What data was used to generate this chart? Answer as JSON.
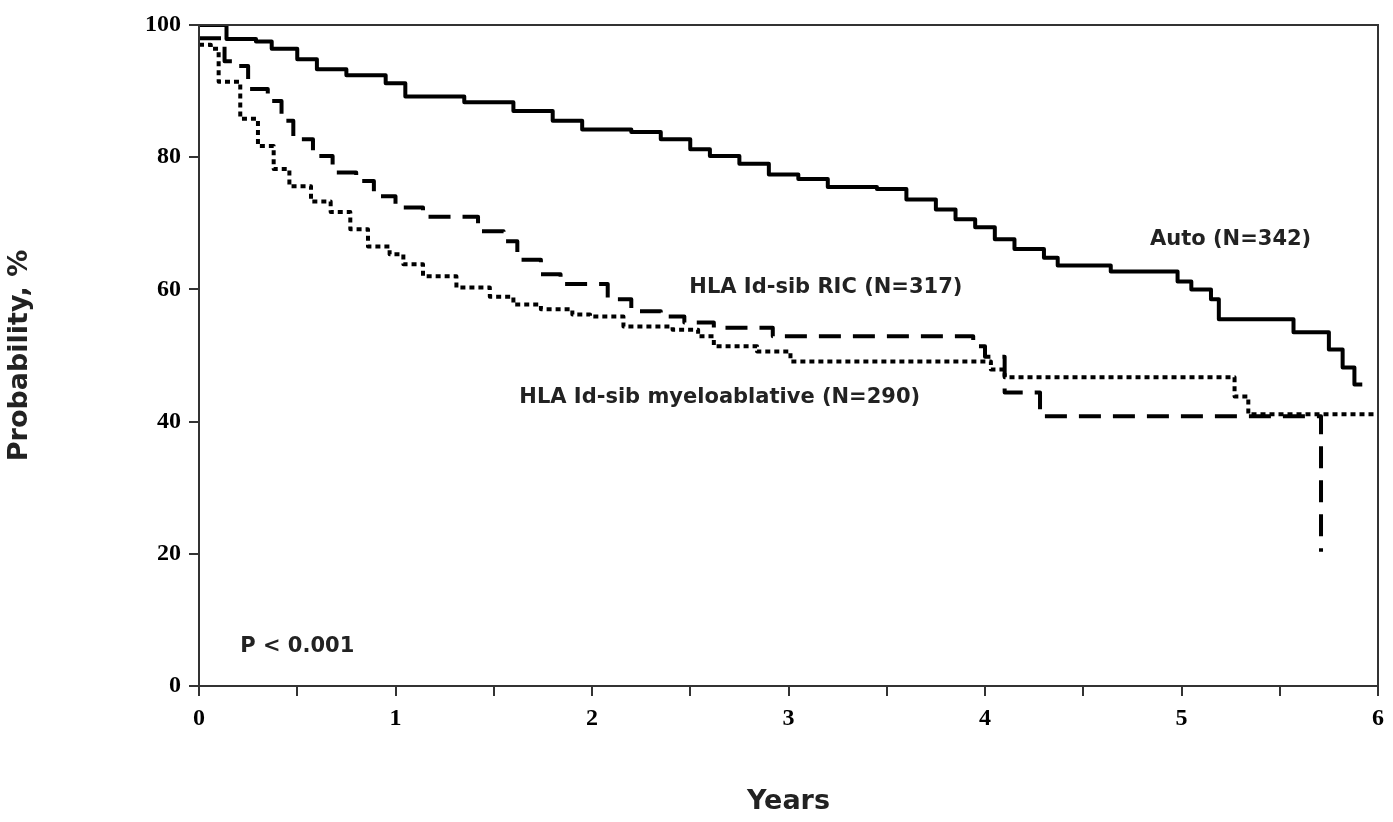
{
  "chart_data": {
    "type": "step",
    "xlabel": "Years",
    "ylabel": "Probability, %",
    "xlim": [
      0,
      6
    ],
    "xticks": [
      0,
      {
        "value": 0.5,
        "label": null
      },
      1,
      {
        "value": 1.5,
        "label": null
      },
      2,
      {
        "value": 2.5,
        "label": null
      },
      3,
      {
        "value": 3.5,
        "label": null
      },
      4,
      {
        "value": 4.5,
        "label": null
      },
      5,
      {
        "value": 5.5,
        "label": null
      },
      6
    ],
    "ylim": [
      0,
      100
    ],
    "yticks": [
      0,
      20,
      40,
      60,
      80,
      100
    ],
    "grid": false,
    "legend": false,
    "marker": "none",
    "annotations": [
      "P < 0.001"
    ],
    "series": [
      {
        "name": "Auto (N=342)",
        "color": "#000000",
        "line_style": "solid",
        "x": [
          0,
          0.14,
          0.29,
          0.37,
          0.5,
          0.6,
          0.75,
          0.95,
          1.05,
          1.35,
          1.6,
          1.8,
          1.95,
          2.2,
          2.35,
          2.5,
          2.6,
          2.75,
          2.9,
          3.05,
          3.2,
          3.45,
          3.6,
          3.75,
          3.85,
          3.95,
          4.05,
          4.15,
          4.3,
          4.37,
          4.64,
          4.98,
          5.05,
          5.15,
          5.19,
          5.57,
          5.75,
          5.82,
          5.88,
          5.92
        ],
        "values": [
          100,
          97.9,
          97.5,
          96.4,
          94.8,
          93.3,
          92.4,
          91.2,
          89.2,
          88.3,
          87,
          85.5,
          84.2,
          83.8,
          82.7,
          81.2,
          80.2,
          79,
          77.4,
          76.7,
          75.5,
          75.2,
          73.6,
          72.1,
          70.6,
          69.4,
          67.6,
          66.1,
          64.8,
          63.6,
          62.7,
          61.2,
          60,
          58.5,
          55.5,
          53.5,
          50.9,
          48.2,
          45.6,
          45.6
        ]
      },
      {
        "name": "HLA Id-sib RIC (N=317)",
        "color": "#000000",
        "line_style": "dashed",
        "x": [
          0,
          0.13,
          0.17,
          0.25,
          0.35,
          0.42,
          0.48,
          0.58,
          0.68,
          0.8,
          0.89,
          1.0,
          1.14,
          1.42,
          1.55,
          1.62,
          1.74,
          1.84,
          2.08,
          2.2,
          2.35,
          2.47,
          2.62,
          2.92,
          3.94,
          4.0,
          4.1,
          4.28,
          5.71,
          5.71
        ],
        "values": [
          98,
          94.5,
          93.8,
          90.3,
          88.5,
          85.5,
          82.7,
          80.2,
          77.7,
          76.4,
          74.1,
          72.4,
          71,
          68.8,
          67.3,
          64.5,
          62.3,
          60.8,
          58.5,
          56.7,
          55.9,
          55,
          54.2,
          52.9,
          51.4,
          49.8,
          44.4,
          40.8,
          40.8,
          20.3
        ]
      },
      {
        "name": "HLA Id-sib myeloablative (N=290)",
        "color": "#000000",
        "line_style": "dotted",
        "x": [
          0,
          0.06,
          0.1,
          0.21,
          0.3,
          0.38,
          0.46,
          0.57,
          0.67,
          0.77,
          0.86,
          0.97,
          1.04,
          1.14,
          1.31,
          1.48,
          1.6,
          1.74,
          1.9,
          1.99,
          2.16,
          2.41,
          2.54,
          2.62,
          2.84,
          3.01,
          4.03,
          4.1,
          5.27,
          5.34,
          5.99
        ],
        "values": [
          97,
          96.4,
          91.4,
          85.8,
          81.7,
          78.2,
          75.6,
          73.3,
          71.7,
          69.1,
          66.5,
          65.3,
          63.8,
          62,
          60.3,
          58.9,
          57.7,
          57,
          56.2,
          55.9,
          54.4,
          53.9,
          52.9,
          51.4,
          50.6,
          49.1,
          47.9,
          46.7,
          43.8,
          41.1,
          41.1
        ]
      }
    ]
  }
}
